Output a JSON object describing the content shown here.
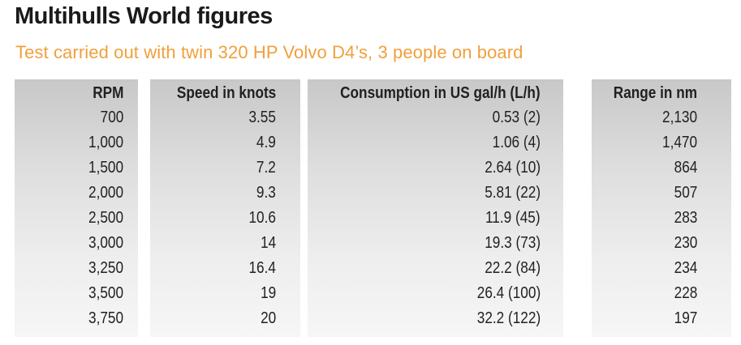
{
  "title": "Multihulls World figures",
  "subtitle": "Test carried out with twin 320 HP Volvo D4’s, 3 people on board",
  "table": {
    "headers": [
      "RPM",
      "Speed in knots",
      "Consumption in US gal/h (L/h)",
      "Range in nm"
    ],
    "rows": [
      [
        "700",
        "3.55",
        "0.53 (2)",
        "2,130"
      ],
      [
        "1,000",
        "4.9",
        "1.06 (4)",
        "1,470"
      ],
      [
        "1,500",
        "7.2",
        "2.64 (10)",
        "864"
      ],
      [
        "2,000",
        "9.3",
        "5.81 (22)",
        "507"
      ],
      [
        "2,500",
        "10.6",
        "11.9 (45)",
        "283"
      ],
      [
        "3,000",
        "14",
        "19.3 (73)",
        "230"
      ],
      [
        "3,250",
        "16.4",
        "22.2 (84)",
        "234"
      ],
      [
        "3,500",
        "19",
        "26.4 (100)",
        "228"
      ],
      [
        "3,750",
        "20",
        "32.2 (122)",
        "197"
      ]
    ]
  },
  "colors": {
    "title": "#1a1a1a",
    "subtitle": "#f0a03c",
    "column_shade_top": "#c8c8c8",
    "column_shade_bottom": "#f6f6f6"
  }
}
